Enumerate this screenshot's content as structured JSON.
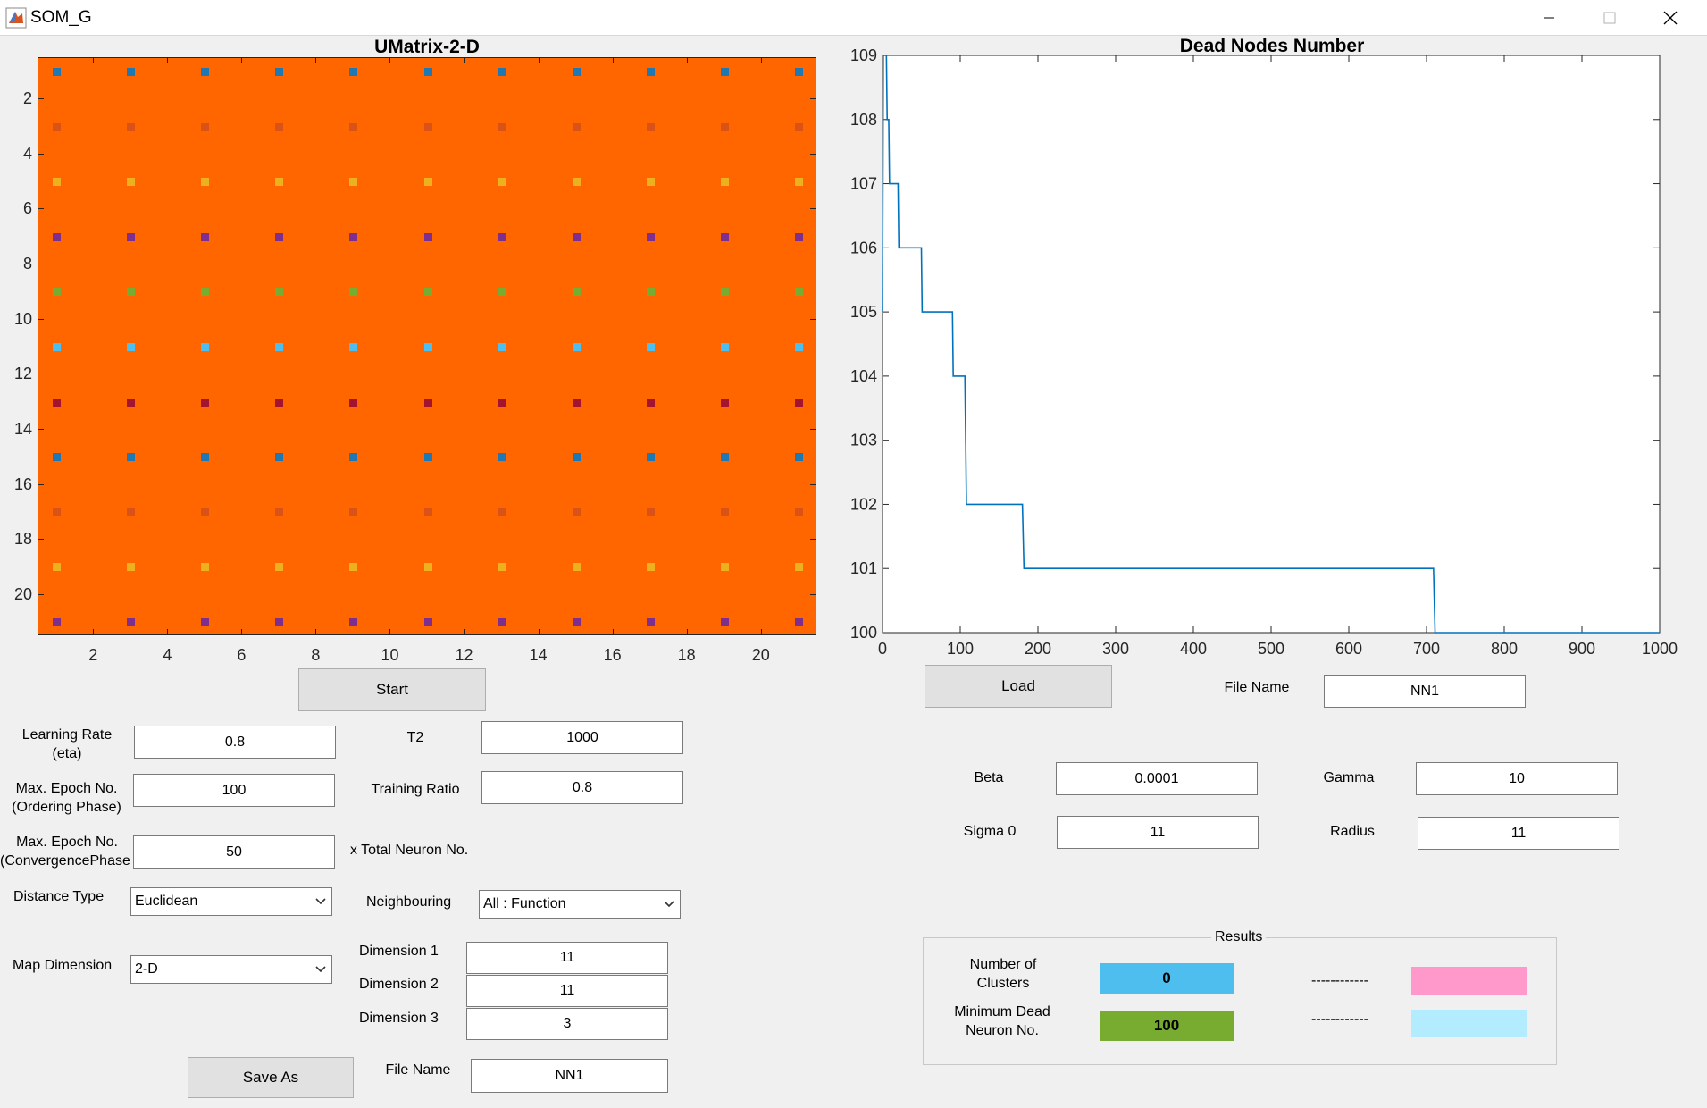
{
  "window": {
    "title": "SOM_G"
  },
  "umatrix": {
    "title": "UMatrix-2-D",
    "bg_color": "#ff6600",
    "x_ticks": [
      "2",
      "4",
      "6",
      "8",
      "10",
      "12",
      "14",
      "16",
      "18",
      "20"
    ],
    "y_ticks": [
      "2",
      "4",
      "6",
      "8",
      "10",
      "12",
      "14",
      "16",
      "18",
      "20"
    ],
    "row_colors": [
      "#1f77b4",
      "#d95319",
      "#edb120",
      "#7e2f8e",
      "#77ac30",
      "#4dbeee",
      "#a2142f",
      "#1f77b4",
      "#d95319",
      "#edb120",
      "#7e2f8e"
    ]
  },
  "chart_data": {
    "type": "line",
    "title": "Dead Nodes Number",
    "xlabel": "",
    "ylabel": "",
    "xlim": [
      0,
      1000
    ],
    "ylim": [
      100,
      109
    ],
    "x_ticks": [
      "0",
      "100",
      "200",
      "300",
      "400",
      "500",
      "600",
      "700",
      "800",
      "900",
      "1000"
    ],
    "y_ticks": [
      "100",
      "101",
      "102",
      "103",
      "104",
      "105",
      "106",
      "107",
      "108",
      "109"
    ],
    "grid": false,
    "series": [
      {
        "color": "#0072bd",
        "points": [
          [
            0,
            105
          ],
          [
            1,
            109
          ],
          [
            5,
            109
          ],
          [
            6,
            108
          ],
          [
            8,
            108
          ],
          [
            9,
            107
          ],
          [
            20,
            107
          ],
          [
            21,
            106
          ],
          [
            50,
            106
          ],
          [
            51,
            105
          ],
          [
            90,
            105
          ],
          [
            91,
            104
          ],
          [
            106,
            104
          ],
          [
            108,
            102
          ],
          [
            180,
            102
          ],
          [
            182,
            101
          ],
          [
            709,
            101
          ],
          [
            711,
            100
          ],
          [
            1000,
            100
          ]
        ]
      }
    ]
  },
  "controls": {
    "start": "Start",
    "load": "Load",
    "save_as": "Save As",
    "file_name_top_label": "File Name",
    "file_name_top": "NN1",
    "file_name_bottom_label": "File Name",
    "file_name_bottom": "NN1",
    "learning_rate_label_1": "Learning Rate",
    "learning_rate_label_2": "(eta)",
    "learning_rate": "0.8",
    "t2_label": "T2",
    "t2": "1000",
    "max_epoch_ordering_label_1": "Max. Epoch No.",
    "max_epoch_ordering_label_2": "(Ordering Phase)",
    "max_epoch_ordering": "100",
    "training_ratio_label": "Training Ratio",
    "training_ratio": "0.8",
    "max_epoch_conv_label_1": "Max. Epoch No.",
    "max_epoch_conv_label_2": "(ConvergencePhase",
    "max_epoch_conv": "50",
    "total_neuron_label": "x Total Neuron No.",
    "distance_type_label": "Distance Type",
    "distance_type": "Euclidean",
    "neighbouring_label": "Neighbouring",
    "neighbouring": "All : Function",
    "map_dimension_label": "Map Dimension",
    "map_dimension": "2-D",
    "dim1_label": "Dimension 1",
    "dim1": "11",
    "dim2_label": "Dimension 2",
    "dim2": "11",
    "dim3_label": "Dimension 3",
    "dim3": "3",
    "beta_label": "Beta",
    "beta": "0.0001",
    "gamma_label": "Gamma",
    "gamma": "10",
    "sigma0_label": "Sigma 0",
    "sigma0": "11",
    "radius_label": "Radius",
    "radius": "11"
  },
  "results": {
    "title": "Results",
    "clusters_label_1": "Number of",
    "clusters_label_2": "Clusters",
    "clusters_value": "0",
    "clusters_color": "#4dbeee",
    "dead_label_1": "Minimum Dead",
    "dead_label_2": "Neuron No.",
    "dead_value": "100",
    "dead_color": "#77ac30",
    "dashes_1": "------------",
    "dashes_2": "------------",
    "pink_color": "#ff99cc",
    "lightblue_color": "#b3ecff"
  }
}
